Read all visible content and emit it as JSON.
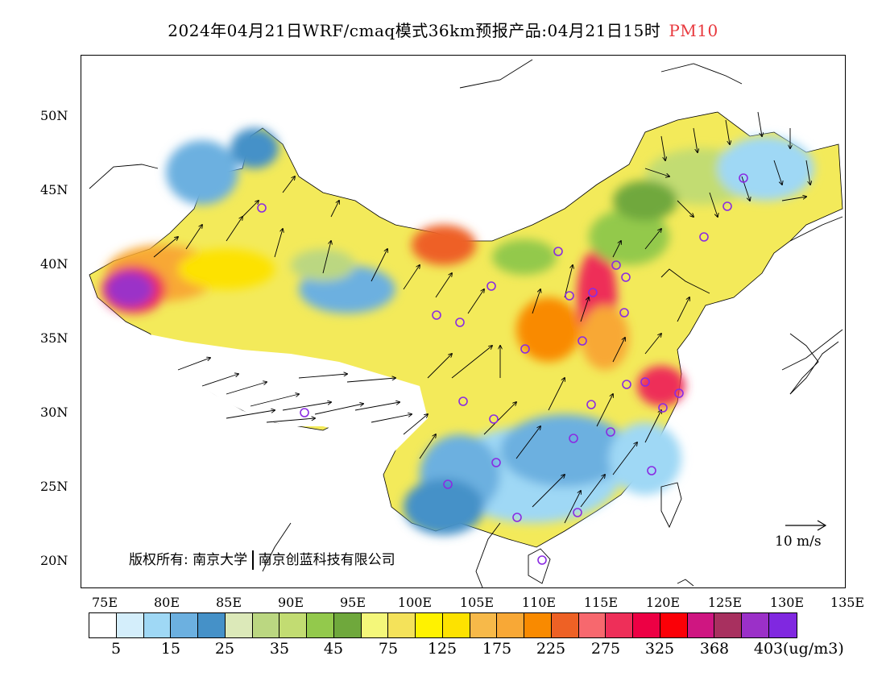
{
  "title": {
    "main": "2024年04月21日WRF/cmaq模式36km预报产品:04月21日15时",
    "pollutant": "PM10"
  },
  "map": {
    "lat_labels": [
      "50N",
      "45N",
      "40N",
      "35N",
      "30N",
      "25N",
      "20N"
    ],
    "lon_labels": [
      "75E",
      "80E",
      "85E",
      "90E",
      "95E",
      "100E",
      "105E",
      "110E",
      "115E",
      "120E",
      "125E",
      "130E",
      "135E"
    ],
    "copyright_left": "版权所有: 南京大学",
    "copyright_right": "南京创蓝科技有限公司",
    "wind_reference": "10 m/s"
  },
  "legend": {
    "colors": [
      "#ffffff",
      "#d4eefb",
      "#9fd8f5",
      "#6cb0e0",
      "#4591c8",
      "#dce9b9",
      "#bbd781",
      "#c2dc72",
      "#93c94c",
      "#6fa83c",
      "#f4f77a",
      "#f4e25a",
      "#fff200",
      "#fde200",
      "#f7b949",
      "#f8a836",
      "#f98a00",
      "#ee6125",
      "#f7686e",
      "#ee2f59",
      "#ed0044",
      "#fb0007",
      "#cf1681",
      "#a8305f",
      "#9b30c8",
      "#8028e0"
    ],
    "labels": [
      "5",
      "15",
      "25",
      "35",
      "45",
      "75",
      "125",
      "175",
      "225",
      "275",
      "325",
      "368",
      "403"
    ],
    "unit": "(ug/m3)"
  }
}
